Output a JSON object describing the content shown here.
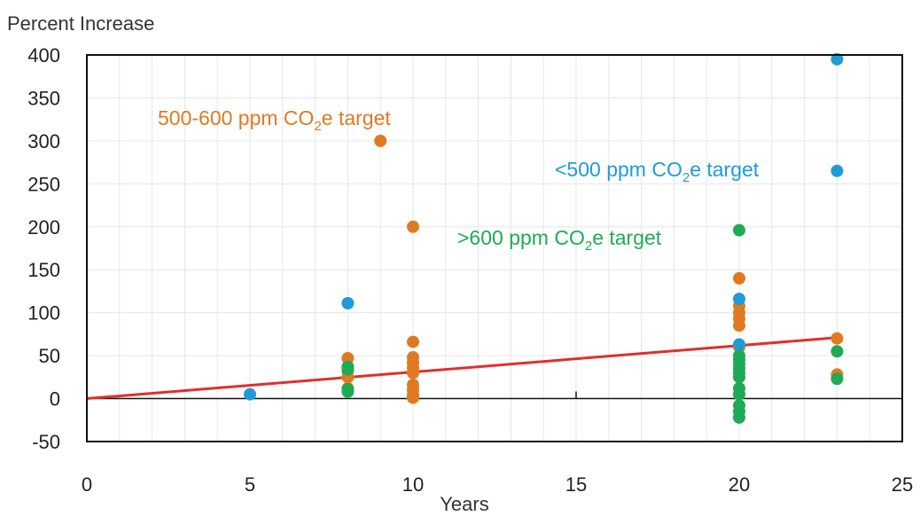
{
  "chart_data": {
    "type": "scatter",
    "title": "",
    "ylabel": "Percent Increase",
    "xlabel": "Years",
    "xlim": [
      0,
      25
    ],
    "ylim": [
      -50,
      400
    ],
    "x_ticks": [
      "0",
      "5",
      "10",
      "15",
      "20",
      "25"
    ],
    "y_ticks": [
      "400",
      "350",
      "300",
      "250",
      "200",
      "150",
      "100",
      "50",
      "0",
      "-50"
    ],
    "grid": true,
    "colors": {
      "orange": "#e07a22",
      "blue": "#1f9bd7",
      "green": "#1faa55",
      "trend": "#e0302a",
      "frame": "#111111",
      "grid": "#e6e6e6"
    },
    "annotations": [
      {
        "series": "orange",
        "prefix": "500-600 ppm CO",
        "sub": "2",
        "suffix": "e target"
      },
      {
        "series": "blue",
        "prefix": "<500 ppm CO",
        "sub": "2",
        "suffix": "e target"
      },
      {
        "series": "green",
        "prefix": ">600 ppm CO",
        "sub": "2",
        "suffix": "e target"
      }
    ],
    "series": [
      {
        "key": "orange",
        "points": [
          [
            8,
            47
          ],
          [
            8,
            32
          ],
          [
            8,
            25
          ],
          [
            8,
            12
          ],
          [
            9,
            300
          ],
          [
            10,
            200
          ],
          [
            10,
            66
          ],
          [
            10,
            48
          ],
          [
            10,
            42
          ],
          [
            10,
            36
          ],
          [
            10,
            30
          ],
          [
            10,
            16
          ],
          [
            10,
            10
          ],
          [
            10,
            4
          ],
          [
            10,
            1
          ],
          [
            20,
            140
          ],
          [
            20,
            108
          ],
          [
            20,
            100
          ],
          [
            20,
            93
          ],
          [
            20,
            85
          ],
          [
            20,
            60
          ],
          [
            23,
            70
          ],
          [
            23,
            28
          ]
        ]
      },
      {
        "key": "blue",
        "points": [
          [
            5,
            5
          ],
          [
            8,
            111
          ],
          [
            20,
            116
          ],
          [
            20,
            63
          ],
          [
            23,
            395
          ],
          [
            23,
            265
          ]
        ]
      },
      {
        "key": "green",
        "points": [
          [
            8,
            37
          ],
          [
            8,
            34
          ],
          [
            8,
            11
          ],
          [
            8,
            8
          ],
          [
            20,
            196
          ],
          [
            20,
            50
          ],
          [
            20,
            45
          ],
          [
            20,
            40
          ],
          [
            20,
            35
          ],
          [
            20,
            30
          ],
          [
            20,
            25
          ],
          [
            20,
            12
          ],
          [
            20,
            5
          ],
          [
            20,
            -8
          ],
          [
            20,
            -15
          ],
          [
            20,
            -22
          ],
          [
            23,
            55
          ],
          [
            23,
            23
          ]
        ]
      }
    ],
    "trendline": {
      "x": [
        0,
        23
      ],
      "y": [
        0,
        71
      ]
    }
  }
}
